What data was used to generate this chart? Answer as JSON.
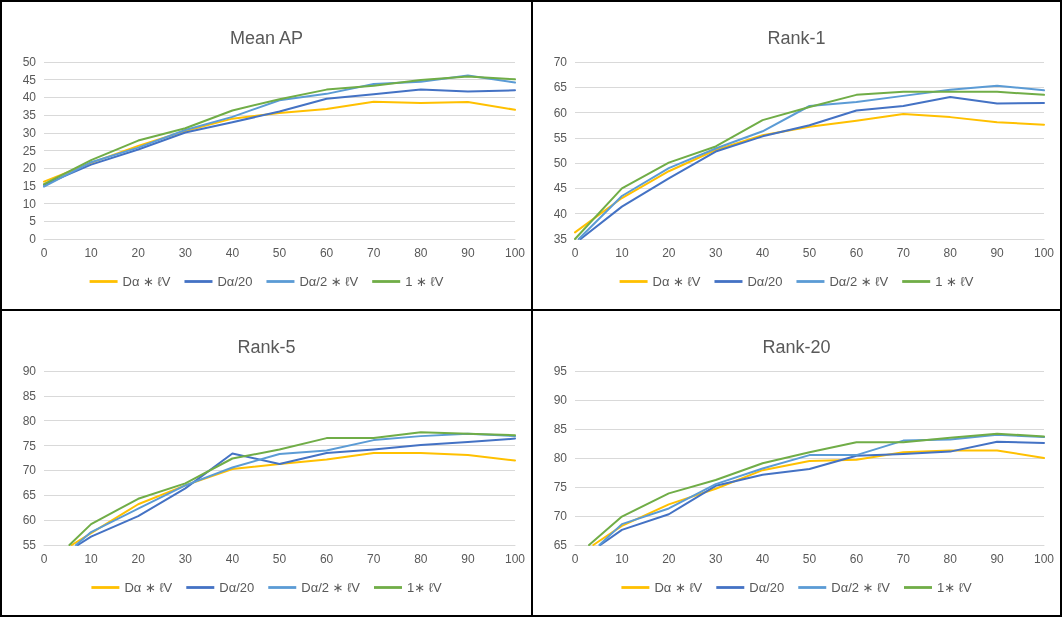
{
  "chart_data": [
    {
      "type": "line",
      "title": "Mean AP",
      "xlim": [
        0,
        100
      ],
      "xticks": [
        0,
        10,
        20,
        30,
        40,
        50,
        60,
        70,
        80,
        90,
        100
      ],
      "ylim": [
        0,
        50
      ],
      "yticks": [
        0,
        5,
        10,
        15,
        20,
        25,
        30,
        35,
        40,
        45,
        50
      ],
      "grid": "y",
      "legend": "bottom",
      "marker": "none",
      "line_style": "solid",
      "x": [
        0,
        10,
        20,
        30,
        40,
        50,
        60,
        70,
        80,
        90,
        100
      ],
      "series": [
        {
          "name": "Dα ∗ ℓV",
          "color": "#ffc000",
          "values": [
            16.2,
            21.5,
            26.3,
            30.5,
            34,
            35.6,
            36.7,
            38.8,
            38.4,
            38.7,
            36.5
          ]
        },
        {
          "name": "Dα/20",
          "color": "#4472c4",
          "values": [
            15.3,
            21,
            25.3,
            30.1,
            33,
            36,
            39.6,
            40.9,
            42.2,
            41.7,
            42
          ]
        },
        {
          "name": "Dα/2 ∗ ℓV",
          "color": "#5b9bd5",
          "values": [
            14.8,
            21.7,
            25.8,
            30.8,
            34.5,
            39.2,
            41,
            43.8,
            44.4,
            46.2,
            44.2
          ]
        },
        {
          "name": "1 ∗ ℓV",
          "color": "#70ad47",
          "values": [
            15.5,
            22.3,
            27.8,
            31.3,
            36.3,
            39.5,
            42.2,
            43.3,
            44.9,
            45.9,
            45.1
          ]
        }
      ]
    },
    {
      "type": "line",
      "title": "Rank-1",
      "xlim": [
        0,
        100
      ],
      "xticks": [
        0,
        10,
        20,
        30,
        40,
        50,
        60,
        70,
        80,
        90,
        100
      ],
      "ylim": [
        35,
        70
      ],
      "yticks": [
        35,
        40,
        45,
        50,
        55,
        60,
        65,
        70
      ],
      "grid": "y",
      "legend": "bottom",
      "marker": "none",
      "line_style": "solid",
      "series": [
        {
          "name": "Dα ∗ ℓV",
          "color": "#ffc000",
          "x": [
            0,
            10,
            20,
            30,
            40,
            50,
            60,
            70,
            80,
            90,
            100
          ],
          "values": [
            36.3,
            43.1,
            48.4,
            52.6,
            55.5,
            57.2,
            58.4,
            59.7,
            59.1,
            58.1,
            57.6
          ]
        },
        {
          "name": "Dα/20",
          "color": "#4472c4",
          "x": [
            1.2,
            10,
            20,
            30,
            40,
            50,
            60,
            70,
            80,
            90,
            100
          ],
          "values": [
            35,
            41.4,
            47,
            52.3,
            55.3,
            57.5,
            60.4,
            61.3,
            63.1,
            61.8,
            61.9
          ]
        },
        {
          "name": "Dα/2 ∗ ℓV",
          "color": "#5b9bd5",
          "x": [
            0.8,
            10,
            20,
            30,
            40,
            50,
            60,
            70,
            80,
            90,
            100
          ],
          "values": [
            35,
            43.5,
            49,
            52.9,
            56.3,
            61.3,
            62.1,
            63.3,
            64.5,
            65.3,
            64.4
          ]
        },
        {
          "name": "1 ∗ ℓV",
          "color": "#70ad47",
          "x": [
            0,
            10,
            20,
            30,
            40,
            50,
            60,
            70,
            80,
            90,
            100
          ],
          "values": [
            35,
            45,
            50.1,
            53.3,
            58.5,
            61.1,
            63.5,
            64.1,
            64.1,
            64.1,
            63.5
          ]
        }
      ]
    },
    {
      "type": "line",
      "title": "Rank-5",
      "xlim": [
        0,
        100
      ],
      "xticks": [
        0,
        10,
        20,
        30,
        40,
        50,
        60,
        70,
        80,
        90,
        100
      ],
      "ylim": [
        55,
        90
      ],
      "yticks": [
        55,
        60,
        65,
        70,
        75,
        80,
        85,
        90
      ],
      "grid": "y",
      "legend": "bottom",
      "marker": "none",
      "line_style": "solid",
      "series": [
        {
          "name": "Dα ∗ ℓV",
          "color": "#ffc000",
          "x": [
            5.9,
            10,
            20,
            30,
            40,
            50,
            60,
            70,
            80,
            90,
            100
          ],
          "values": [
            55,
            57.4,
            63.2,
            67,
            70.3,
            71.3,
            72.2,
            73.5,
            73.5,
            73.1,
            72
          ]
        },
        {
          "name": "Dα/20",
          "color": "#4472c4",
          "x": [
            7.2,
            10,
            20,
            30,
            40,
            50,
            60,
            70,
            80,
            90,
            100
          ],
          "values": [
            55,
            56.7,
            60.8,
            66.4,
            73.4,
            71.3,
            73.5,
            74.2,
            75.1,
            75.7,
            76.4
          ]
        },
        {
          "name": "Dα/2 ∗ ℓV",
          "color": "#5b9bd5",
          "x": [
            6.8,
            10,
            20,
            30,
            40,
            50,
            60,
            70,
            80,
            90,
            100
          ],
          "values": [
            55,
            57.6,
            62.3,
            67,
            70.6,
            73.3,
            74,
            76.1,
            76.9,
            77.4,
            76.9
          ]
        },
        {
          "name": "1∗ ℓV",
          "color": "#70ad47",
          "x": [
            5.4,
            10,
            20,
            30,
            40,
            50,
            60,
            70,
            80,
            90,
            100
          ],
          "values": [
            55,
            59.2,
            64.3,
            67.4,
            72.4,
            74.2,
            76.5,
            76.5,
            77.7,
            77.4,
            77.1
          ]
        }
      ]
    },
    {
      "type": "line",
      "title": "Rank-20",
      "xlim": [
        0,
        100
      ],
      "xticks": [
        0,
        10,
        20,
        30,
        40,
        50,
        60,
        70,
        80,
        90,
        100
      ],
      "ylim": [
        65,
        95
      ],
      "yticks": [
        65,
        70,
        75,
        80,
        85,
        90,
        95
      ],
      "grid": "y",
      "legend": "bottom",
      "marker": "none",
      "line_style": "solid",
      "series": [
        {
          "name": "Dα ∗ ℓV",
          "color": "#ffc000",
          "x": [
            3.9,
            10,
            20,
            30,
            40,
            50,
            60,
            70,
            80,
            90,
            100
          ],
          "values": [
            65,
            68.3,
            72,
            74.7,
            77.9,
            79.5,
            79.7,
            81,
            81.3,
            81.3,
            80
          ]
        },
        {
          "name": "Dα/20",
          "color": "#4472c4",
          "x": [
            5.4,
            10,
            20,
            30,
            40,
            50,
            60,
            70,
            80,
            90,
            100
          ],
          "values": [
            65,
            67.6,
            70.3,
            75.2,
            77.1,
            78.1,
            80.4,
            80.7,
            81.1,
            82.8,
            82.6
          ]
        },
        {
          "name": "Dα/2 ∗ ℓV",
          "color": "#5b9bd5",
          "x": [
            5.2,
            10,
            20,
            30,
            40,
            50,
            60,
            70,
            80,
            90,
            100
          ],
          "values": [
            65,
            68.6,
            71.3,
            75.5,
            78.2,
            80.5,
            80.5,
            83,
            83.2,
            84,
            83.6
          ]
        },
        {
          "name": "1∗ ℓV",
          "color": "#70ad47",
          "x": [
            3.0,
            10,
            20,
            30,
            40,
            50,
            60,
            70,
            80,
            90,
            100
          ],
          "values": [
            65,
            69.9,
            73.9,
            76.2,
            79.1,
            81,
            82.7,
            82.7,
            83.5,
            84.2,
            83.7
          ]
        }
      ]
    }
  ]
}
